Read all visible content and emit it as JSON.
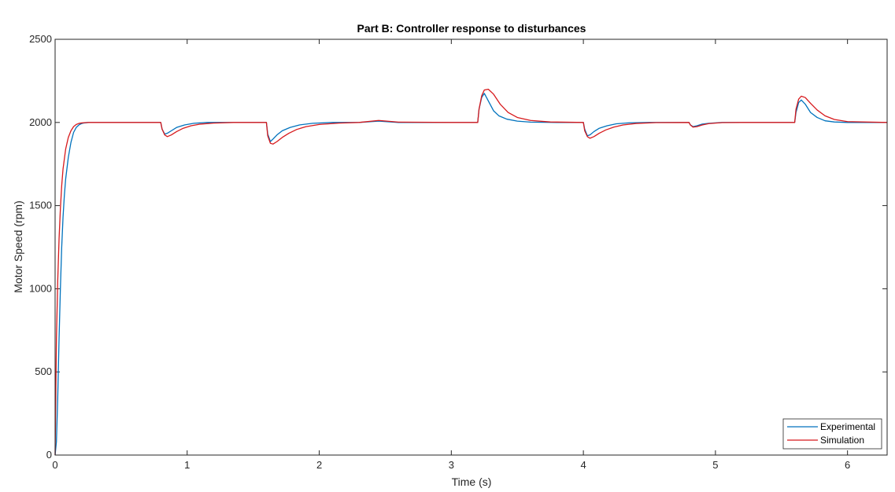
{
  "chart_data": {
    "type": "line",
    "title": "Part B: Controller response to disturbances",
    "xlabel": "Time (s)",
    "ylabel": "Motor Speed (rpm)",
    "xlim": [
      0,
      6.3
    ],
    "ylim": [
      0,
      2500
    ],
    "xticks": [
      0,
      1,
      2,
      3,
      4,
      5,
      6
    ],
    "yticks": [
      0,
      500,
      1000,
      1500,
      2000,
      2500
    ],
    "grid": false,
    "legend_position": "bottom-right",
    "series": [
      {
        "name": "Experimental",
        "color": "#0072BD",
        "x": [
          0,
          0.01,
          0.02,
          0.03,
          0.04,
          0.05,
          0.06,
          0.07,
          0.08,
          0.1,
          0.12,
          0.14,
          0.16,
          0.18,
          0.2,
          0.22,
          0.25,
          0.3,
          0.4,
          0.6,
          0.8,
          0.81,
          0.83,
          0.85,
          0.88,
          0.92,
          0.98,
          1.05,
          1.15,
          1.3,
          1.6,
          1.61,
          1.63,
          1.65,
          1.68,
          1.72,
          1.78,
          1.85,
          1.95,
          2.1,
          2.3,
          2.45,
          2.6,
          3.0,
          3.2,
          3.21,
          3.23,
          3.25,
          3.28,
          3.32,
          3.36,
          3.42,
          3.5,
          3.6,
          3.8,
          4.0,
          4.01,
          4.03,
          4.05,
          4.08,
          4.12,
          4.18,
          4.25,
          4.35,
          4.5,
          4.8,
          4.81,
          4.83,
          4.86,
          4.9,
          4.95,
          5.05,
          5.2,
          5.6,
          5.61,
          5.63,
          5.65,
          5.68,
          5.72,
          5.77,
          5.83,
          5.9,
          6.0,
          6.3
        ],
        "y": [
          0,
          80,
          350,
          700,
          1000,
          1250,
          1430,
          1560,
          1660,
          1790,
          1880,
          1940,
          1970,
          1985,
          1993,
          1997,
          2000,
          2000,
          2000,
          2000,
          2000,
          1960,
          1930,
          1935,
          1950,
          1970,
          1985,
          1995,
          2000,
          2000,
          2000,
          1930,
          1885,
          1900,
          1925,
          1950,
          1970,
          1985,
          1995,
          2000,
          2000,
          2008,
          2000,
          2000,
          2000,
          2080,
          2150,
          2175,
          2130,
          2070,
          2040,
          2020,
          2008,
          2002,
          2000,
          2000,
          1960,
          1920,
          1925,
          1945,
          1965,
          1980,
          1992,
          1998,
          2000,
          2000,
          1985,
          1975,
          1980,
          1990,
          1995,
          2000,
          2000,
          2000,
          2060,
          2120,
          2135,
          2110,
          2060,
          2030,
          2010,
          2003,
          2000,
          2000
        ]
      },
      {
        "name": "Simulation",
        "color": "#D7191C",
        "x": [
          0,
          0.005,
          0.01,
          0.02,
          0.03,
          0.04,
          0.05,
          0.06,
          0.08,
          0.1,
          0.12,
          0.14,
          0.16,
          0.18,
          0.2,
          0.23,
          0.26,
          0.3,
          0.4,
          0.6,
          0.8,
          0.81,
          0.83,
          0.85,
          0.88,
          0.92,
          0.97,
          1.03,
          1.1,
          1.2,
          1.35,
          1.6,
          1.61,
          1.63,
          1.65,
          1.68,
          1.72,
          1.77,
          1.83,
          1.9,
          2.0,
          2.15,
          2.3,
          2.45,
          2.6,
          3.0,
          3.2,
          3.21,
          3.23,
          3.25,
          3.28,
          3.32,
          3.37,
          3.43,
          3.5,
          3.6,
          3.75,
          4.0,
          4.01,
          4.03,
          4.05,
          4.08,
          4.12,
          4.17,
          4.23,
          4.3,
          4.4,
          4.55,
          4.8,
          4.81,
          4.83,
          4.86,
          4.9,
          4.95,
          5.05,
          5.2,
          5.6,
          5.61,
          5.63,
          5.65,
          5.68,
          5.72,
          5.77,
          5.83,
          5.9,
          6.0,
          6.3
        ],
        "y": [
          0,
          350,
          700,
          1050,
          1300,
          1480,
          1620,
          1720,
          1840,
          1910,
          1950,
          1975,
          1988,
          1994,
          1997,
          1999,
          2000,
          2000,
          2000,
          2000,
          2000,
          1960,
          1925,
          1915,
          1925,
          1945,
          1965,
          1980,
          1990,
          1996,
          2000,
          2000,
          1920,
          1875,
          1870,
          1885,
          1910,
          1935,
          1958,
          1975,
          1988,
          1996,
          2000,
          2012,
          2002,
          2000,
          2000,
          2080,
          2160,
          2195,
          2200,
          2170,
          2110,
          2060,
          2030,
          2012,
          2003,
          2000,
          1950,
          1915,
          1905,
          1915,
          1935,
          1955,
          1972,
          1985,
          1994,
          1999,
          2000,
          1985,
          1972,
          1975,
          1985,
          1993,
          1999,
          2000,
          2000,
          2080,
          2140,
          2158,
          2150,
          2115,
          2075,
          2040,
          2018,
          2005,
          2000
        ]
      }
    ]
  }
}
